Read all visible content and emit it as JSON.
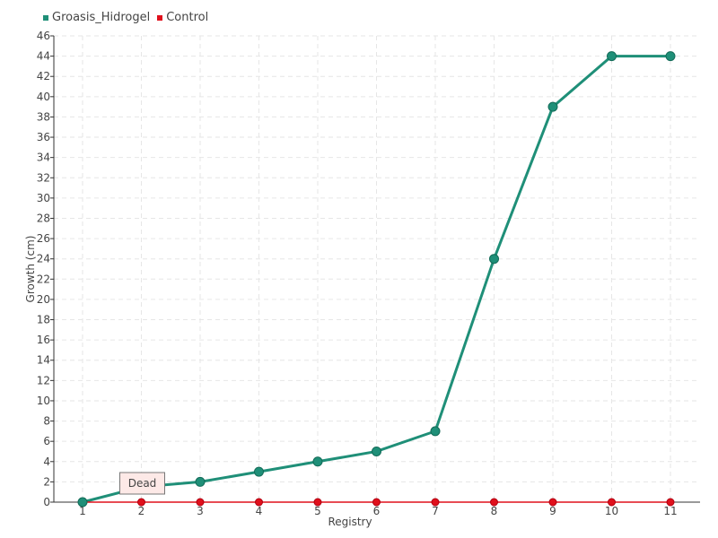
{
  "colors": {
    "series_groasis": "#1f8f78",
    "series_control": "#e0101c",
    "grid": "#e6e6e6",
    "axis": "#333333",
    "tooltip_bg": "#fde9e7",
    "tooltip_border": "#777777"
  },
  "legend": [
    {
      "label": "Groasis_Hidrogel",
      "color": "#1f8f78"
    },
    {
      "label": "Control",
      "color": "#e0101c"
    }
  ],
  "chart_data": {
    "type": "line",
    "title": "",
    "xlabel": "Registry",
    "ylabel": "Growth (cm)",
    "categories": [
      "1",
      "2",
      "3",
      "4",
      "5",
      "6",
      "7",
      "8",
      "9",
      "10",
      "11"
    ],
    "ylim": [
      0,
      46
    ],
    "ytick_step": 2,
    "grid": true,
    "legend_position": "top-left",
    "series": [
      {
        "name": "Groasis_Hidrogel",
        "values": [
          0,
          1.5,
          2,
          3,
          4,
          5,
          7,
          24,
          39,
          44,
          44
        ]
      },
      {
        "name": "Control",
        "values": [
          0,
          0,
          0,
          0,
          0,
          0,
          0,
          0,
          0,
          0,
          0
        ]
      }
    ],
    "annotations": [
      {
        "text": "Dead",
        "category": "2"
      }
    ]
  }
}
